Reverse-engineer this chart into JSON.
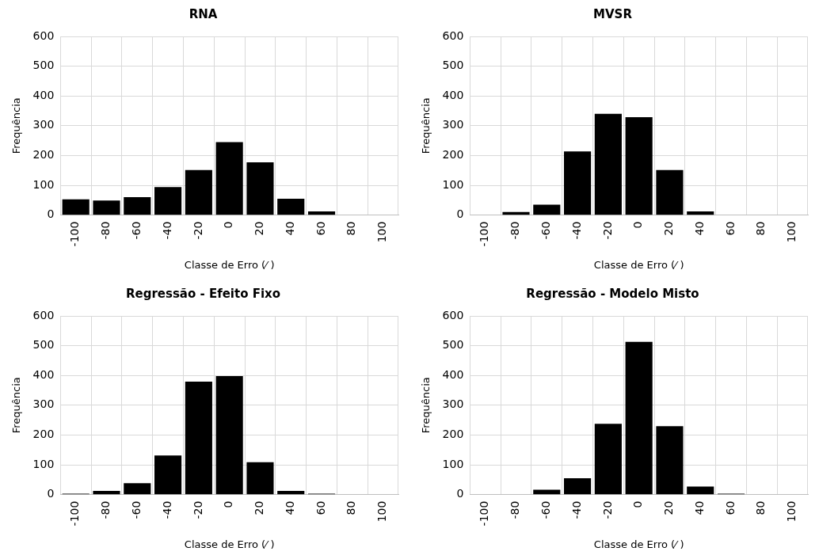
{
  "chart_data": [
    {
      "type": "bar",
      "title": "RNA",
      "xlabel": "Classe de Erro (⁄ )",
      "ylabel": "Frequência",
      "categories": [
        "-100",
        "-80",
        "-60",
        "-40",
        "-20",
        "0",
        "20",
        "40",
        "60",
        "80",
        "100"
      ],
      "color": "#000000",
      "values": [
        53,
        49,
        60,
        94,
        151,
        245,
        177,
        55,
        12,
        0,
        0
      ],
      "ylim": [
        0,
        600
      ],
      "yticks": [
        0,
        100,
        200,
        300,
        400,
        500,
        600
      ],
      "grid": true
    },
    {
      "type": "bar",
      "title": "MVSR",
      "xlabel": "Classe de Erro (⁄ )",
      "ylabel": "Frequência",
      "categories": [
        "-100",
        "-80",
        "-60",
        "-40",
        "-20",
        "0",
        "20",
        "40",
        "60",
        "80",
        "100"
      ],
      "color": "#000000",
      "values": [
        0,
        10,
        35,
        214,
        340,
        329,
        151,
        12,
        0,
        0,
        0
      ],
      "ylim": [
        0,
        600
      ],
      "yticks": [
        0,
        100,
        200,
        300,
        400,
        500,
        600
      ],
      "grid": true
    },
    {
      "type": "bar",
      "title": "Regressão - Efeito Fixo",
      "xlabel": "Classe de Erro (⁄ )",
      "ylabel": "Frequência",
      "categories": [
        "-100",
        "-80",
        "-60",
        "-40",
        "-20",
        "0",
        "20",
        "40",
        "60",
        "80",
        "100"
      ],
      "color": "#000000",
      "values": [
        3,
        12,
        38,
        131,
        379,
        398,
        109,
        12,
        3,
        0,
        0
      ],
      "ylim": [
        0,
        600
      ],
      "yticks": [
        0,
        100,
        200,
        300,
        400,
        500,
        600
      ],
      "grid": true
    },
    {
      "type": "bar",
      "title": "Regressão - Modelo Misto",
      "xlabel": "Classe de Erro (⁄ )",
      "ylabel": "Frequência",
      "categories": [
        "-100",
        "-80",
        "-60",
        "-40",
        "-20",
        "0",
        "20",
        "40",
        "60",
        "80",
        "100"
      ],
      "color": "#000000",
      "values": [
        0,
        0,
        16,
        55,
        238,
        513,
        230,
        27,
        3,
        0,
        0
      ],
      "ylim": [
        0,
        600
      ],
      "yticks": [
        0,
        100,
        200,
        300,
        400,
        500,
        600
      ],
      "grid": true
    }
  ]
}
